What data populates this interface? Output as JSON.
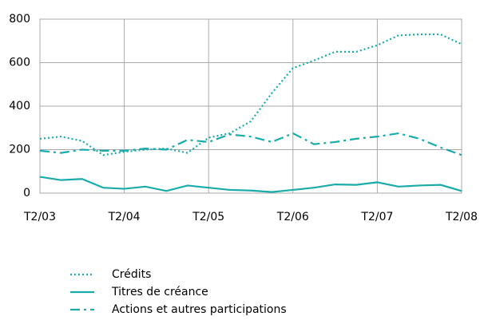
{
  "chart_data": {
    "type": "line",
    "categories": [
      "T2/03",
      null,
      null,
      null,
      "T2/04",
      null,
      null,
      null,
      "T2/05",
      null,
      null,
      null,
      "T2/06",
      null,
      null,
      null,
      "T2/07",
      null,
      null,
      null,
      "T2/08"
    ],
    "series": [
      {
        "name": "Crédits",
        "color": "#1aabab",
        "dash": "dotted",
        "values": [
          250,
          260,
          240,
          175,
          190,
          200,
          205,
          185,
          255,
          275,
          330,
          460,
          575,
          610,
          650,
          650,
          680,
          725,
          730,
          730,
          685
        ]
      },
      {
        "name": "Titres de créance",
        "color": "#1aabab",
        "dash": "solid",
        "values": [
          75,
          60,
          65,
          25,
          20,
          30,
          10,
          35,
          25,
          15,
          12,
          5,
          15,
          25,
          40,
          38,
          50,
          30,
          35,
          38,
          10
        ]
      },
      {
        "name": "Actions et autres participations",
        "color": "#1aabab",
        "dash": "dashdot",
        "values": [
          195,
          185,
          200,
          195,
          195,
          205,
          200,
          245,
          235,
          270,
          260,
          235,
          275,
          225,
          235,
          250,
          260,
          275,
          250,
          210,
          175
        ]
      }
    ],
    "ylim": [
      0,
      800
    ],
    "yticks": [
      0,
      200,
      400,
      600,
      800
    ],
    "grid": true
  }
}
